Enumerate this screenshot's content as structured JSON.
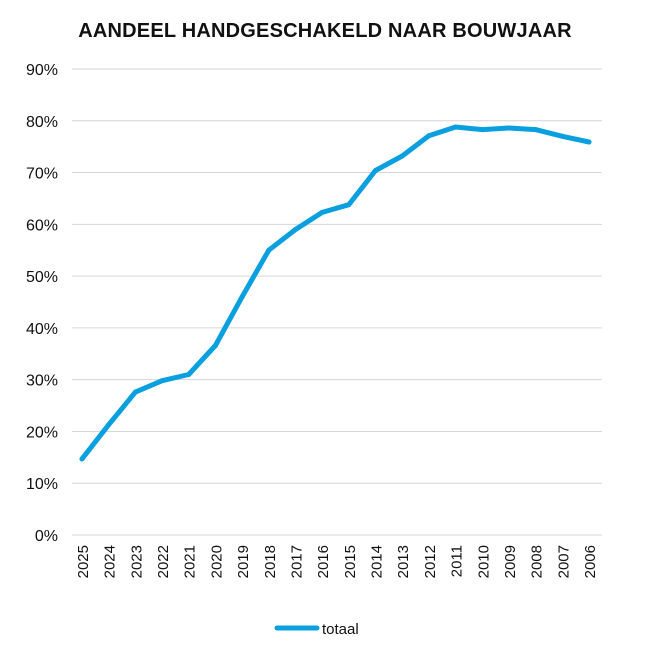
{
  "chart_data": {
    "type": "line",
    "title": "AANDEEL HANDGESCHAKELD NAAR BOUWJAAR",
    "xlabel": "",
    "ylabel": "",
    "ylim": [
      0,
      90
    ],
    "ytick_labels": [
      "0%",
      "10%",
      "20%",
      "30%",
      "40%",
      "50%",
      "60%",
      "70%",
      "80%",
      "90%"
    ],
    "categories": [
      "2025",
      "2024",
      "2023",
      "2022",
      "2021",
      "2020",
      "2019",
      "2018",
      "2017",
      "2016",
      "2015",
      "2014",
      "2013",
      "2012",
      "2011",
      "2010",
      "2009",
      "2008",
      "2007",
      "2006"
    ],
    "series": [
      {
        "name": "totaal",
        "color": "#0aa0e0",
        "values": [
          14.7,
          21.3,
          27.6,
          29.8,
          31.0,
          36.6,
          46.0,
          55.0,
          59.0,
          62.3,
          63.8,
          70.4,
          73.2,
          77.1,
          78.8,
          78.3,
          78.6,
          78.3,
          77.0,
          75.9
        ]
      }
    ],
    "grid": true,
    "legend_position": "bottom-center"
  }
}
